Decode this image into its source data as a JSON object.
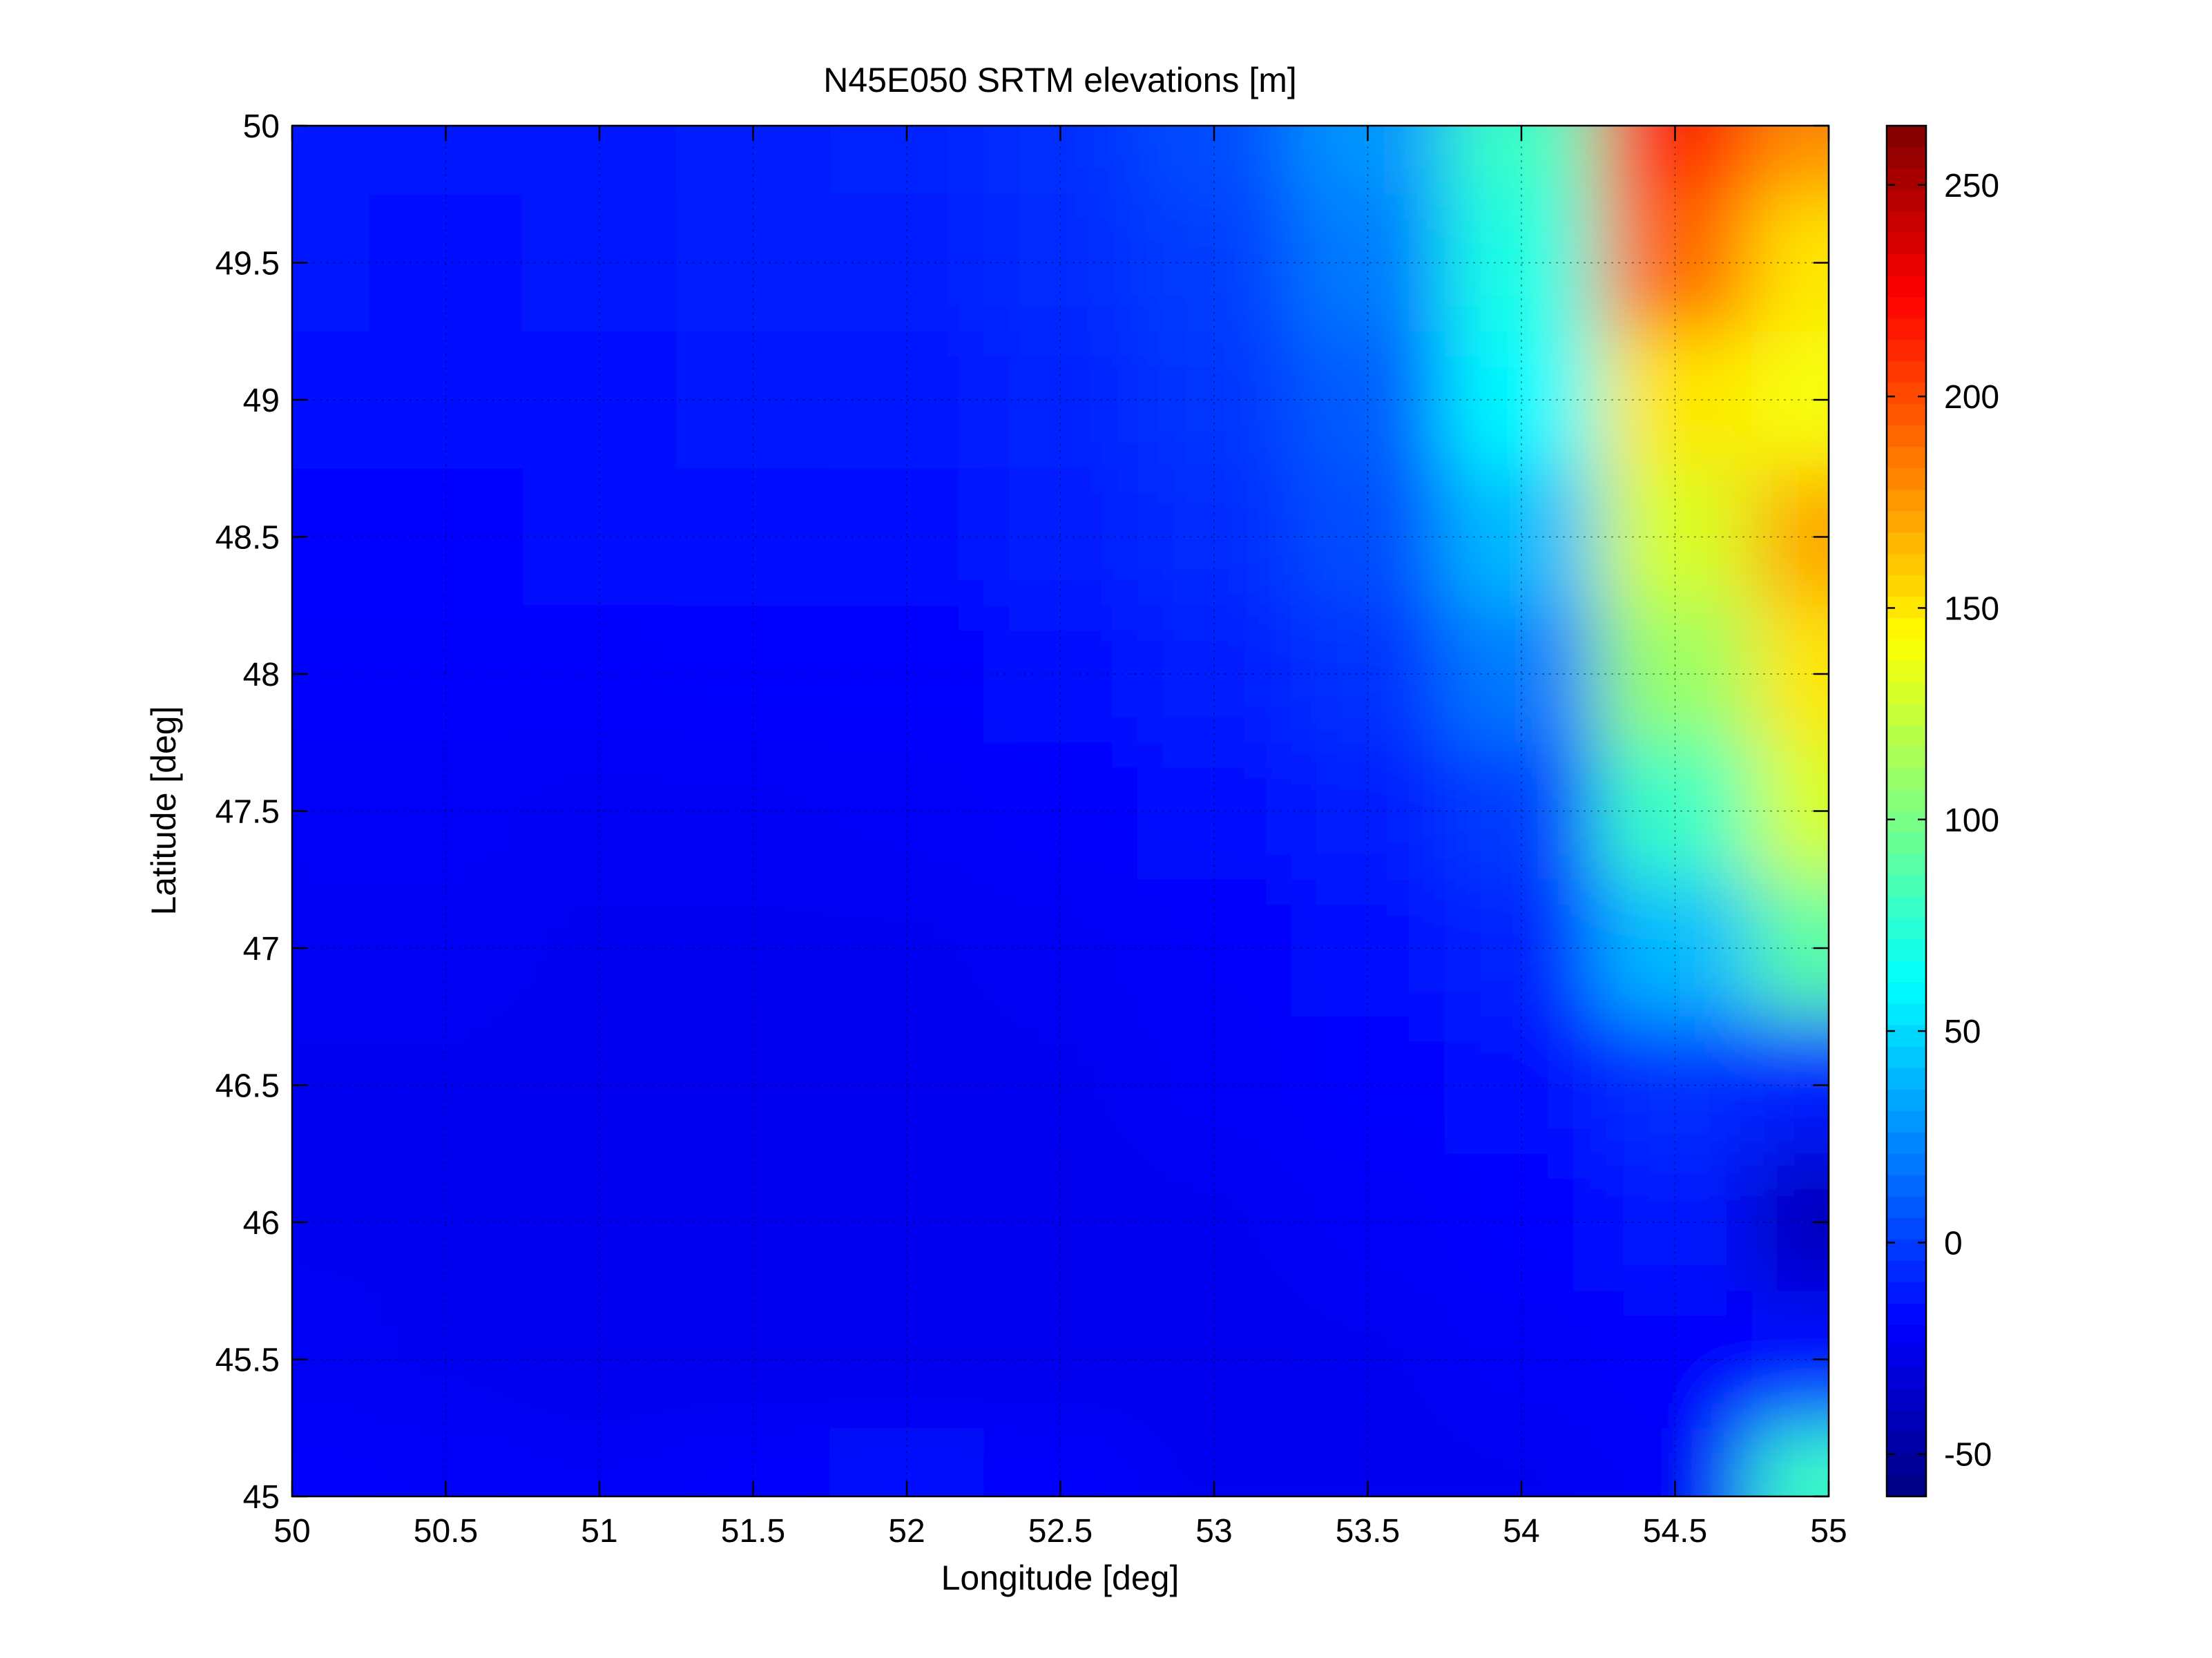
{
  "chart_data": {
    "type": "heatmap",
    "title": "N45E050 SRTM elevations [m]",
    "xlabel": "Longitude [deg]",
    "ylabel": "Latitude [deg]",
    "xlim": [
      50,
      55
    ],
    "ylim": [
      45,
      50
    ],
    "xticks": [
      50,
      50.5,
      51,
      51.5,
      52,
      52.5,
      53,
      53.5,
      54,
      54.5,
      55
    ],
    "xtick_labels": [
      "50",
      "50.5",
      "51",
      "51.5",
      "52",
      "52.5",
      "53",
      "53.5",
      "54",
      "54.5",
      "55"
    ],
    "yticks": [
      45,
      45.5,
      46,
      46.5,
      47,
      47.5,
      48,
      48.5,
      49,
      49.5,
      50
    ],
    "ytick_labels": [
      "45",
      "45.5",
      "46",
      "46.5",
      "47",
      "47.5",
      "48",
      "48.5",
      "49",
      "49.5",
      "50"
    ],
    "grid": true,
    "colormap": "jet",
    "colorbar": {
      "clim": [
        -60,
        264
      ],
      "ticks": [
        -50,
        0,
        50,
        100,
        150,
        200,
        250
      ],
      "tick_labels": [
        "-50",
        "0",
        "50",
        "100",
        "150",
        "200",
        "250"
      ]
    },
    "elevation_grid": {
      "lon": [
        50,
        50.5,
        51,
        51.5,
        52,
        52.5,
        53,
        53.5,
        54,
        54.5,
        55
      ],
      "lat": [
        50,
        49.5,
        49,
        48.5,
        48,
        47.5,
        47,
        46.5,
        46,
        45.5,
        45
      ],
      "values": [
        [
          -12,
          -13,
          -12,
          -10,
          -9,
          -5,
          5,
          28,
          80,
          210,
          180
        ],
        [
          -13,
          -14,
          -13,
          -11,
          -10,
          -6,
          0,
          20,
          70,
          190,
          150
        ],
        [
          -15,
          -16,
          -15,
          -13,
          -12,
          -8,
          -3,
          10,
          60,
          150,
          140
        ],
        [
          -18,
          -18,
          -17,
          -15,
          -14,
          -11,
          -6,
          5,
          40,
          130,
          170
        ],
        [
          -20,
          -20,
          -20,
          -19,
          -18,
          -15,
          -10,
          -4,
          20,
          110,
          150
        ],
        [
          -22,
          -22,
          -23,
          -23,
          -22,
          -20,
          -16,
          -10,
          0,
          80,
          130
        ],
        [
          -23,
          -23,
          -24,
          -24,
          -24,
          -23,
          -21,
          -16,
          -8,
          40,
          90
        ],
        [
          -24,
          -24,
          -25,
          -25,
          -25,
          -24,
          -22,
          -19,
          -14,
          -5,
          -10
        ],
        [
          -24,
          -24,
          -25,
          -25,
          -25,
          -25,
          -24,
          -22,
          -18,
          -12,
          -40
        ],
        [
          -23,
          -24,
          -25,
          -25,
          -25,
          -25,
          -25,
          -24,
          -22,
          -20,
          -15
        ],
        [
          -20,
          -21,
          -22,
          -20,
          -15,
          -20,
          -24,
          -25,
          -24,
          -22,
          80
        ]
      ]
    }
  }
}
